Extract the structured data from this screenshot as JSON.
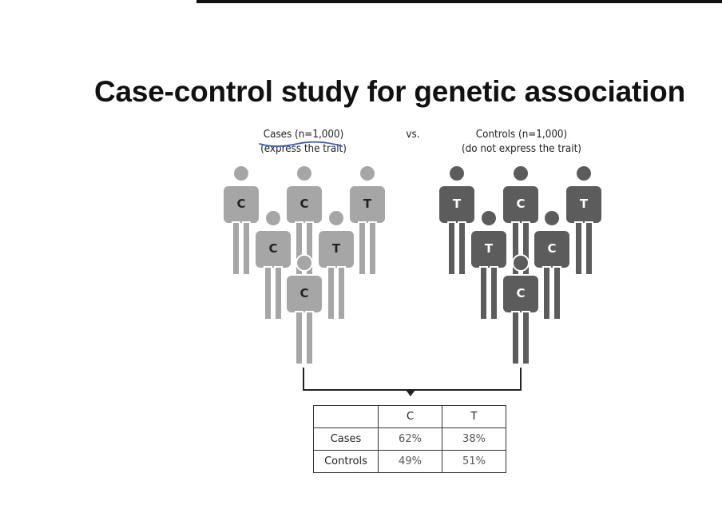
{
  "title": "Case-control study for genetic association",
  "groups": {
    "cases": {
      "label": "Cases (n=1,000)",
      "sublabel": "(express the trait)",
      "color": "#a6a6a6",
      "alleles": [
        "C",
        "C",
        "T",
        "C",
        "T",
        "C"
      ]
    },
    "vs_label": "vs.",
    "controls": {
      "label": "Controls (n=1,000)",
      "sublabel": "(do not express the trait)",
      "color": "#5c5c5c",
      "alleles": [
        "T",
        "C",
        "T",
        "T",
        "C",
        "C"
      ]
    }
  },
  "table": {
    "columns": [
      "C",
      "T"
    ],
    "rows": [
      {
        "label": "Cases",
        "values": [
          "62%",
          "38%"
        ]
      },
      {
        "label": "Controls",
        "values": [
          "49%",
          "51%"
        ]
      }
    ]
  },
  "pen_annotation_color": "#3a5fb0"
}
